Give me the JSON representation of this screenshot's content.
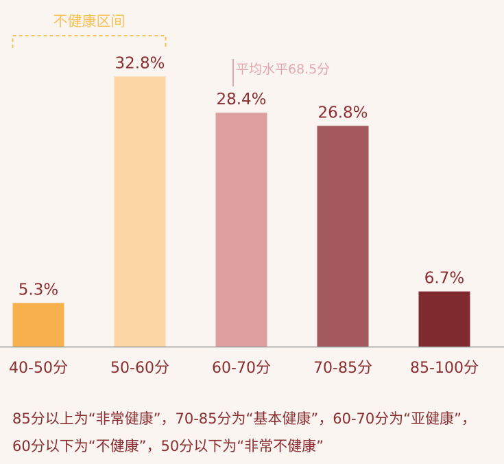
{
  "chart_data": {
    "type": "bar",
    "categories": [
      "40-50分",
      "50-60分",
      "60-70分",
      "70-85分",
      "85-100分"
    ],
    "values": [
      5.3,
      32.8,
      28.4,
      26.8,
      6.7
    ],
    "value_labels": [
      "5.3%",
      "32.8%",
      "28.4%",
      "26.8%",
      "6.7%"
    ],
    "unit": "%",
    "colors": [
      "#f6b14d",
      "#fcd7a3",
      "#dc9e9f",
      "#a3585c",
      "#7e2a2f"
    ],
    "ylim": [
      0,
      35
    ],
    "legend": "none",
    "grid": false,
    "annotations": {
      "unhealthy_range": "不健康区间",
      "average": "平均水平68.5分"
    }
  },
  "colors": {
    "label": "#8a2e32",
    "annotation": "#f6c25a",
    "average_line": "#e1a8ad",
    "axis": "#999999"
  },
  "footnote": "85分以上为“非常健康”，70-85分为“基本健康”，60-70分为“亚健康”，60分以下为“不健康”，50分以下为“非常不健康”"
}
